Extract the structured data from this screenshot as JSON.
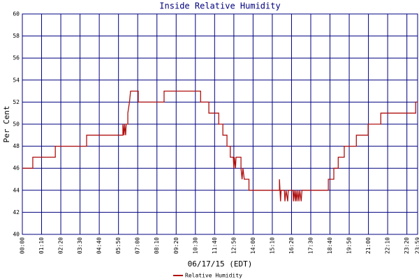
{
  "chart_data": {
    "type": "line",
    "title": "Inside Relative Humidity",
    "x_label": "06/17/15 (EDT)",
    "y_label": "Per Cent",
    "xlim": [
      0,
      1439
    ],
    "ylim": [
      40,
      60
    ],
    "xticks": [
      {
        "value": 0,
        "label": "00:00"
      },
      {
        "value": 70,
        "label": "01:10"
      },
      {
        "value": 140,
        "label": "02:20"
      },
      {
        "value": 210,
        "label": "03:30"
      },
      {
        "value": 280,
        "label": "04:40"
      },
      {
        "value": 350,
        "label": "05:50"
      },
      {
        "value": 420,
        "label": "07:00"
      },
      {
        "value": 490,
        "label": "08:10"
      },
      {
        "value": 560,
        "label": "09:20"
      },
      {
        "value": 630,
        "label": "10:30"
      },
      {
        "value": 700,
        "label": "11:40"
      },
      {
        "value": 770,
        "label": "12:50"
      },
      {
        "value": 840,
        "label": "14:00"
      },
      {
        "value": 910,
        "label": "15:10"
      },
      {
        "value": 980,
        "label": "16:20"
      },
      {
        "value": 1050,
        "label": "17:30"
      },
      {
        "value": 1120,
        "label": "18:40"
      },
      {
        "value": 1190,
        "label": "19:50"
      },
      {
        "value": 1260,
        "label": "21:00"
      },
      {
        "value": 1330,
        "label": "22:10"
      },
      {
        "value": 1400,
        "label": "23:20"
      },
      {
        "value": 1439,
        "label": "23:59"
      }
    ],
    "yticks": [
      40,
      42,
      44,
      46,
      48,
      50,
      52,
      54,
      56,
      58,
      60
    ],
    "grid": true,
    "series": [
      {
        "name": "Relative Humidity",
        "color": "#b01010",
        "x": [
          0,
          38,
          38,
          120,
          120,
          234,
          234,
          366,
          366,
          370,
          372,
          376,
          378,
          384,
          384,
          390,
          394,
          422,
          422,
          516,
          516,
          649,
          649,
          679,
          679,
          715,
          715,
          730,
          730,
          745,
          745,
          757,
          757,
          768,
          770,
          772,
          776,
          778,
          796,
          796,
          800,
          803,
          808,
          825,
          825,
          936,
          936,
          938,
          940,
          942,
          954,
          956,
          960,
          966,
          968,
          985,
          987,
          990,
          994,
          996,
          1000,
          1003,
          1007,
          1010,
          1015,
          1018,
          1114,
          1114,
          1134,
          1134,
          1150,
          1150,
          1172,
          1172,
          1216,
          1216,
          1259,
          1259,
          1305,
          1305,
          1432,
          1432,
          1439
        ],
        "values": [
          46,
          46,
          47,
          47,
          48,
          48,
          49,
          49,
          50,
          49,
          50,
          49,
          50,
          50,
          51,
          52,
          53,
          53,
          52,
          52,
          53,
          53,
          52,
          52,
          51,
          51,
          50,
          50,
          49,
          49,
          48,
          48,
          47,
          47,
          46,
          47,
          46,
          47,
          47,
          46,
          45,
          46,
          45,
          45,
          44,
          44,
          45,
          44,
          43,
          44,
          44,
          43,
          44,
          43,
          44,
          44,
          43,
          44,
          43,
          44,
          43,
          44,
          43,
          44,
          43,
          44,
          44,
          45,
          45,
          46,
          46,
          47,
          47,
          48,
          48,
          49,
          49,
          50,
          50,
          51,
          51,
          52,
          52
        ]
      }
    ]
  }
}
